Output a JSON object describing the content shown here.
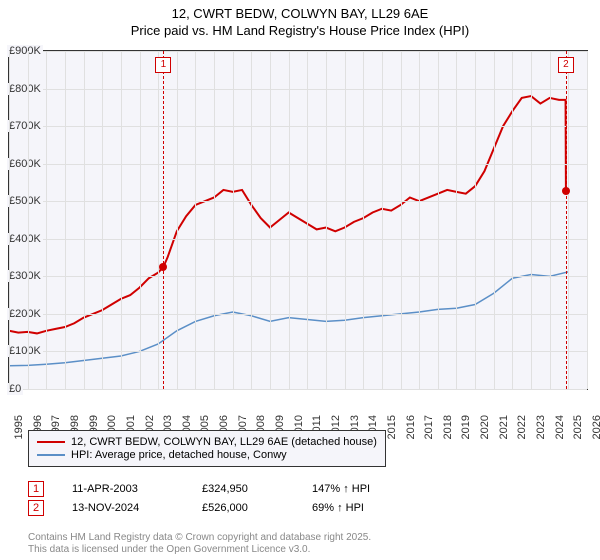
{
  "title_line1": "12, CWRT BEDW, COLWYN BAY, LL29 6AE",
  "title_line2": "Price paid vs. HM Land Registry's House Price Index (HPI)",
  "chart": {
    "type": "line",
    "background_color": "#f5f5fa",
    "grid_color": "#e0e0e0",
    "x": {
      "min": 1995,
      "max": 2026,
      "ticks": [
        1995,
        1996,
        1997,
        1998,
        1999,
        2000,
        2001,
        2002,
        2003,
        2004,
        2005,
        2006,
        2007,
        2008,
        2009,
        2010,
        2011,
        2012,
        2013,
        2014,
        2015,
        2016,
        2017,
        2018,
        2019,
        2020,
        2021,
        2022,
        2023,
        2024,
        2025,
        2026
      ]
    },
    "y": {
      "min": 0,
      "max": 900000,
      "ticks": [
        0,
        100000,
        200000,
        300000,
        400000,
        500000,
        600000,
        700000,
        800000,
        900000
      ],
      "tick_labels": [
        "£0",
        "£100K",
        "£200K",
        "£300K",
        "£400K",
        "£500K",
        "£600K",
        "£700K",
        "£800K",
        "£900K"
      ]
    },
    "series": [
      {
        "name": "price_paid",
        "color": "#d00000",
        "width": 2,
        "data": [
          [
            1995,
            155000
          ],
          [
            1995.5,
            150000
          ],
          [
            1996,
            152000
          ],
          [
            1996.5,
            148000
          ],
          [
            1997,
            155000
          ],
          [
            1997.5,
            160000
          ],
          [
            1998,
            165000
          ],
          [
            1998.5,
            175000
          ],
          [
            1999,
            190000
          ],
          [
            1999.5,
            200000
          ],
          [
            2000,
            210000
          ],
          [
            2000.5,
            225000
          ],
          [
            2001,
            240000
          ],
          [
            2001.5,
            250000
          ],
          [
            2002,
            270000
          ],
          [
            2002.5,
            295000
          ],
          [
            2003,
            310000
          ],
          [
            2003.28,
            324950
          ],
          [
            2003.5,
            350000
          ],
          [
            2004,
            420000
          ],
          [
            2004.5,
            460000
          ],
          [
            2005,
            490000
          ],
          [
            2005.5,
            500000
          ],
          [
            2006,
            510000
          ],
          [
            2006.5,
            530000
          ],
          [
            2007,
            525000
          ],
          [
            2007.5,
            530000
          ],
          [
            2008,
            490000
          ],
          [
            2008.5,
            455000
          ],
          [
            2009,
            430000
          ],
          [
            2009.5,
            450000
          ],
          [
            2010,
            470000
          ],
          [
            2010.5,
            455000
          ],
          [
            2011,
            440000
          ],
          [
            2011.5,
            425000
          ],
          [
            2012,
            430000
          ],
          [
            2012.5,
            420000
          ],
          [
            2013,
            430000
          ],
          [
            2013.5,
            445000
          ],
          [
            2014,
            455000
          ],
          [
            2014.5,
            470000
          ],
          [
            2015,
            480000
          ],
          [
            2015.5,
            475000
          ],
          [
            2016,
            490000
          ],
          [
            2016.5,
            510000
          ],
          [
            2017,
            500000
          ],
          [
            2017.5,
            510000
          ],
          [
            2018,
            520000
          ],
          [
            2018.5,
            530000
          ],
          [
            2019,
            525000
          ],
          [
            2019.5,
            520000
          ],
          [
            2020,
            540000
          ],
          [
            2020.5,
            580000
          ],
          [
            2021,
            640000
          ],
          [
            2021.5,
            700000
          ],
          [
            2022,
            740000
          ],
          [
            2022.5,
            775000
          ],
          [
            2023,
            780000
          ],
          [
            2023.5,
            760000
          ],
          [
            2024,
            775000
          ],
          [
            2024.5,
            770000
          ],
          [
            2024.85,
            770000
          ],
          [
            2024.87,
            526000
          ]
        ]
      },
      {
        "name": "hpi",
        "color": "#5b8fc7",
        "width": 1.5,
        "data": [
          [
            1995,
            62000
          ],
          [
            1996,
            63000
          ],
          [
            1997,
            66000
          ],
          [
            1998,
            70000
          ],
          [
            1999,
            76000
          ],
          [
            2000,
            82000
          ],
          [
            2001,
            88000
          ],
          [
            2002,
            100000
          ],
          [
            2003,
            120000
          ],
          [
            2004,
            155000
          ],
          [
            2005,
            180000
          ],
          [
            2006,
            195000
          ],
          [
            2007,
            205000
          ],
          [
            2008,
            195000
          ],
          [
            2009,
            180000
          ],
          [
            2010,
            190000
          ],
          [
            2011,
            185000
          ],
          [
            2012,
            180000
          ],
          [
            2013,
            183000
          ],
          [
            2014,
            190000
          ],
          [
            2015,
            195000
          ],
          [
            2016,
            200000
          ],
          [
            2017,
            205000
          ],
          [
            2018,
            212000
          ],
          [
            2019,
            215000
          ],
          [
            2020,
            225000
          ],
          [
            2021,
            255000
          ],
          [
            2022,
            295000
          ],
          [
            2023,
            305000
          ],
          [
            2024,
            300000
          ],
          [
            2025,
            312000
          ]
        ]
      }
    ],
    "markers": [
      {
        "n": "1",
        "x": 2003.28,
        "y": 324950,
        "dot_color": "#d00000"
      },
      {
        "n": "2",
        "x": 2024.87,
        "y": 526000,
        "dot_color": "#d00000"
      }
    ]
  },
  "legend": {
    "items": [
      {
        "color": "#d00000",
        "label": "12, CWRT BEDW, COLWYN BAY, LL29 6AE (detached house)"
      },
      {
        "color": "#5b8fc7",
        "label": "HPI: Average price, detached house, Conwy"
      }
    ]
  },
  "sales": [
    {
      "n": "1",
      "date": "11-APR-2003",
      "price": "£324,950",
      "hpi": "147% ↑ HPI"
    },
    {
      "n": "2",
      "date": "13-NOV-2024",
      "price": "£526,000",
      "hpi": "69% ↑ HPI"
    }
  ],
  "footer_line1": "Contains HM Land Registry data © Crown copyright and database right 2025.",
  "footer_line2": "This data is licensed under the Open Government Licence v3.0."
}
